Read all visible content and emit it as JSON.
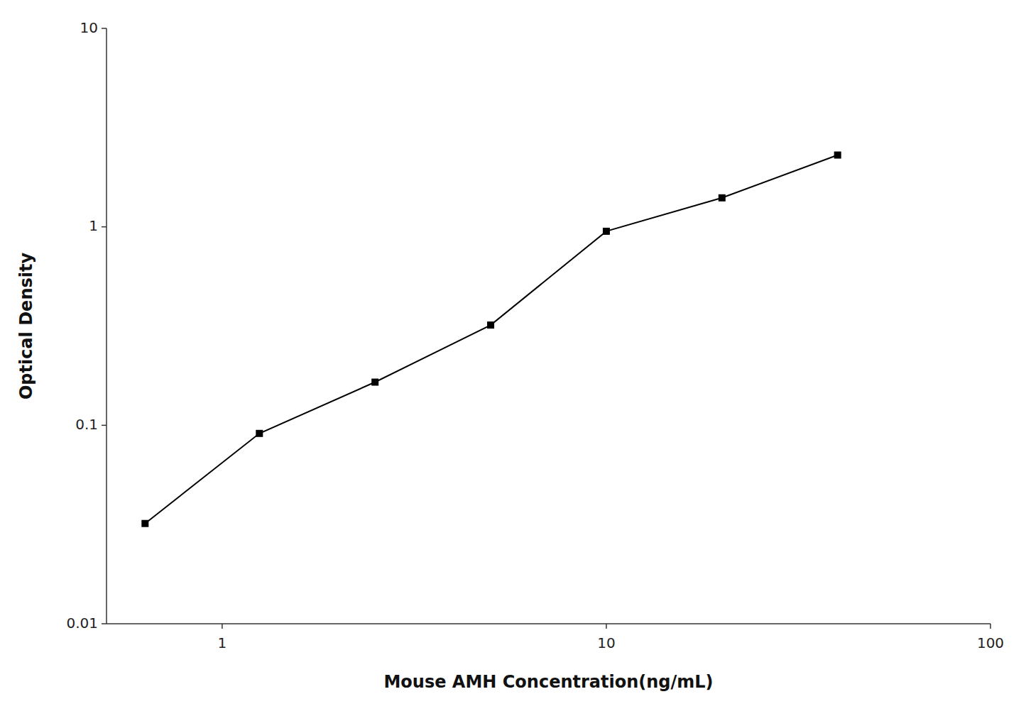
{
  "chart_data": {
    "type": "line",
    "x": [
      0.63,
      1.25,
      2.5,
      5.0,
      10.0,
      20.0,
      40.0
    ],
    "values": [
      0.032,
      0.091,
      0.165,
      0.32,
      0.95,
      1.4,
      2.3
    ],
    "xlabel": "Mouse AMH Concentration(ng/mL)",
    "ylabel": "Optical Density",
    "xlim": [
      0.5,
      100
    ],
    "ylim": [
      0.01,
      10
    ],
    "xticks": [
      1,
      10,
      100
    ],
    "yticks": [
      0.01,
      0.1,
      1,
      10
    ],
    "log": true,
    "grid": false,
    "color": "#000000",
    "marker": "square"
  }
}
